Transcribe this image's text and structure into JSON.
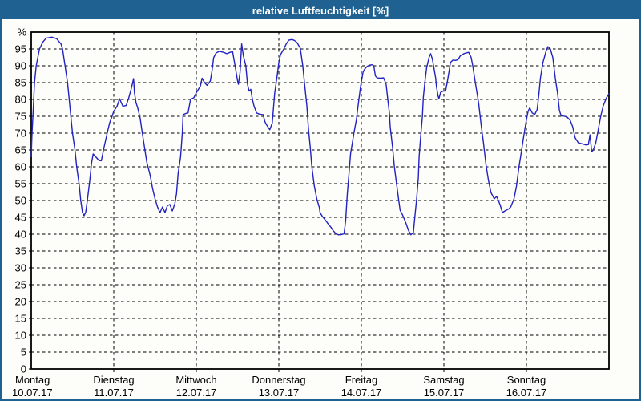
{
  "window": {
    "title": "relative Luftfeuchtigkeit [%]",
    "titlebar_color": "#1f6292",
    "border_color": "#1f6292",
    "background_color": "#fdfdfa"
  },
  "chart_data": {
    "type": "line",
    "title": "relative Luftfeuchtigkeit [%]",
    "ylabel": "%",
    "xlabel": "",
    "ylim": [
      0,
      100
    ],
    "yticks": [
      0,
      5,
      10,
      15,
      20,
      25,
      30,
      35,
      40,
      45,
      50,
      55,
      60,
      65,
      70,
      75,
      80,
      85,
      90,
      95
    ],
    "grid": "dashed",
    "legend_position": "none",
    "line_color": "#2222c0",
    "x_unit": "days_since_monday_00h",
    "xlim": [
      0,
      7
    ],
    "categories": [
      {
        "day": "Montag",
        "date": "10.07.17"
      },
      {
        "day": "Dienstag",
        "date": "11.07.17"
      },
      {
        "day": "Mittwoch",
        "date": "12.07.17"
      },
      {
        "day": "Donnerstag",
        "date": "13.07.17"
      },
      {
        "day": "Freitag",
        "date": "14.07.17"
      },
      {
        "day": "Samstag",
        "date": "15.07.17"
      },
      {
        "day": "Sonntag",
        "date": "16.07.17"
      }
    ],
    "series": [
      {
        "name": "relative Luftfeuchtigkeit [%]",
        "points": [
          [
            0,
            63
          ],
          [
            0.01,
            70
          ],
          [
            0.02,
            75
          ],
          [
            0.04,
            85
          ],
          [
            0.06,
            90
          ],
          [
            0.1,
            95
          ],
          [
            0.14,
            97
          ],
          [
            0.18,
            98.2
          ],
          [
            0.25,
            98.5
          ],
          [
            0.31,
            98
          ],
          [
            0.36,
            96.5
          ],
          [
            0.38,
            95
          ],
          [
            0.41,
            90
          ],
          [
            0.44,
            85
          ],
          [
            0.46,
            80
          ],
          [
            0.48,
            75
          ],
          [
            0.5,
            70
          ],
          [
            0.53,
            65
          ],
          [
            0.55,
            60
          ],
          [
            0.58,
            55
          ],
          [
            0.6,
            50
          ],
          [
            0.62,
            46.5
          ],
          [
            0.64,
            45.5
          ],
          [
            0.66,
            46.5
          ],
          [
            0.68,
            50
          ],
          [
            0.71,
            56
          ],
          [
            0.73,
            61
          ],
          [
            0.75,
            63.8
          ],
          [
            0.78,
            63
          ],
          [
            0.82,
            61.9
          ],
          [
            0.85,
            61.8
          ],
          [
            0.88,
            65.5
          ],
          [
            0.92,
            70
          ],
          [
            0.95,
            73
          ],
          [
            0.98,
            75
          ],
          [
            1,
            76.5
          ],
          [
            1.04,
            78
          ],
          [
            1.07,
            80.2
          ],
          [
            1.11,
            78
          ],
          [
            1.15,
            78.2
          ],
          [
            1.18,
            80.3
          ],
          [
            1.21,
            83
          ],
          [
            1.24,
            86.2
          ],
          [
            1.25,
            82
          ],
          [
            1.27,
            79
          ],
          [
            1.29,
            77.5
          ],
          [
            1.32,
            74.3
          ],
          [
            1.34,
            71
          ],
          [
            1.37,
            66.2
          ],
          [
            1.4,
            61.4
          ],
          [
            1.44,
            57.6
          ],
          [
            1.47,
            53.6
          ],
          [
            1.5,
            50.5
          ],
          [
            1.53,
            48.1
          ],
          [
            1.56,
            46.4
          ],
          [
            1.59,
            48.1
          ],
          [
            1.62,
            46.4
          ],
          [
            1.65,
            48.5
          ],
          [
            1.68,
            48.8
          ],
          [
            1.71,
            46.9
          ],
          [
            1.74,
            49
          ],
          [
            1.76,
            52
          ],
          [
            1.78,
            58
          ],
          [
            1.81,
            63
          ],
          [
            1.83,
            70
          ],
          [
            1.84,
            75.5
          ],
          [
            1.87,
            75.8
          ],
          [
            1.9,
            76
          ],
          [
            1.93,
            80
          ],
          [
            1.97,
            80.5
          ],
          [
            2,
            82
          ],
          [
            2.05,
            84
          ],
          [
            2.07,
            86.3
          ],
          [
            2.1,
            85
          ],
          [
            2.13,
            84.2
          ],
          [
            2.17,
            85.5
          ],
          [
            2.19,
            88.5
          ],
          [
            2.21,
            92.4
          ],
          [
            2.24,
            93.8
          ],
          [
            2.28,
            94.3
          ],
          [
            2.33,
            94
          ],
          [
            2.37,
            93.6
          ],
          [
            2.41,
            94
          ],
          [
            2.44,
            94.2
          ],
          [
            2.47,
            90
          ],
          [
            2.5,
            85.5
          ],
          [
            2.51,
            84.5
          ],
          [
            2.53,
            88
          ],
          [
            2.55,
            96.5
          ],
          [
            2.57,
            93
          ],
          [
            2.6,
            90
          ],
          [
            2.62,
            84.5
          ],
          [
            2.64,
            82.5
          ],
          [
            2.66,
            83
          ],
          [
            2.68,
            80
          ],
          [
            2.7,
            78
          ],
          [
            2.73,
            76
          ],
          [
            2.77,
            75.6
          ],
          [
            2.81,
            75.5
          ],
          [
            2.83,
            73.5
          ],
          [
            2.85,
            72.5
          ],
          [
            2.89,
            71
          ],
          [
            2.92,
            73
          ],
          [
            2.95,
            82
          ],
          [
            2.98,
            87
          ],
          [
            3,
            91
          ],
          [
            3.02,
            93.3
          ],
          [
            3.06,
            95
          ],
          [
            3.09,
            96.5
          ],
          [
            3.12,
            97.6
          ],
          [
            3.16,
            97.8
          ],
          [
            3.19,
            97.5
          ],
          [
            3.22,
            96.9
          ],
          [
            3.26,
            95.2
          ],
          [
            3.29,
            90
          ],
          [
            3.31,
            85.2
          ],
          [
            3.34,
            78.1
          ],
          [
            3.36,
            71
          ],
          [
            3.38,
            66.2
          ],
          [
            3.4,
            60
          ],
          [
            3.43,
            54.3
          ],
          [
            3.46,
            50.5
          ],
          [
            3.49,
            48
          ],
          [
            3.5,
            46.4
          ],
          [
            3.53,
            45.2
          ],
          [
            3.57,
            44
          ],
          [
            3.6,
            43
          ],
          [
            3.63,
            42.1
          ],
          [
            3.66,
            41
          ],
          [
            3.69,
            40.2
          ],
          [
            3.72,
            39.8
          ],
          [
            3.76,
            39.9
          ],
          [
            3.79,
            40.1
          ],
          [
            3.81,
            44
          ],
          [
            3.83,
            52
          ],
          [
            3.85,
            58
          ],
          [
            3.87,
            64
          ],
          [
            3.89,
            67
          ],
          [
            3.91,
            70
          ],
          [
            3.94,
            74
          ],
          [
            3.96,
            78.1
          ],
          [
            3.99,
            83.8
          ],
          [
            4.02,
            88.1
          ],
          [
            4.04,
            89
          ],
          [
            4.07,
            89.8
          ],
          [
            4.1,
            90.2
          ],
          [
            4.13,
            90.3
          ],
          [
            4.15,
            90
          ],
          [
            4.17,
            87
          ],
          [
            4.19,
            86.4
          ],
          [
            4.23,
            86.3
          ],
          [
            4.27,
            86.4
          ],
          [
            4.3,
            84.5
          ],
          [
            4.32,
            80
          ],
          [
            4.34,
            76
          ],
          [
            4.35,
            71.9
          ],
          [
            4.38,
            65.5
          ],
          [
            4.4,
            60
          ],
          [
            4.43,
            54.3
          ],
          [
            4.45,
            50.5
          ],
          [
            4.47,
            47.1
          ],
          [
            4.5,
            45.7
          ],
          [
            4.54,
            43.3
          ],
          [
            4.57,
            41.2
          ],
          [
            4.6,
            39.8
          ],
          [
            4.63,
            40.5
          ],
          [
            4.65,
            45.7
          ],
          [
            4.67,
            50.5
          ],
          [
            4.69,
            56.7
          ],
          [
            4.7,
            63
          ],
          [
            4.72,
            69.5
          ],
          [
            4.74,
            75
          ],
          [
            4.75,
            80.5
          ],
          [
            4.77,
            85.2
          ],
          [
            4.79,
            89.3
          ],
          [
            4.82,
            92.5
          ],
          [
            4.84,
            93.6
          ],
          [
            4.86,
            92
          ],
          [
            4.88,
            89.3
          ],
          [
            4.9,
            86.4
          ],
          [
            4.91,
            83.8
          ],
          [
            4.93,
            81
          ],
          [
            4.94,
            80.2
          ],
          [
            4.96,
            82.1
          ],
          [
            4.99,
            82.5
          ],
          [
            5.02,
            82.5
          ],
          [
            5.04,
            85
          ],
          [
            5.06,
            88
          ],
          [
            5.08,
            91
          ],
          [
            5.11,
            91.7
          ],
          [
            5.14,
            91.6
          ],
          [
            5.17,
            91.8
          ],
          [
            5.2,
            93
          ],
          [
            5.25,
            93.7
          ],
          [
            5.3,
            94
          ],
          [
            5.33,
            92.5
          ],
          [
            5.35,
            90
          ],
          [
            5.38,
            85.2
          ],
          [
            5.42,
            79
          ],
          [
            5.45,
            72.6
          ],
          [
            5.48,
            67.1
          ],
          [
            5.51,
            60.7
          ],
          [
            5.54,
            56
          ],
          [
            5.57,
            52.4
          ],
          [
            5.61,
            50.5
          ],
          [
            5.64,
            51.2
          ],
          [
            5.66,
            50
          ],
          [
            5.68,
            48.8
          ],
          [
            5.71,
            46.4
          ],
          [
            5.74,
            46.9
          ],
          [
            5.79,
            47.6
          ],
          [
            5.81,
            48.1
          ],
          [
            5.85,
            50.5
          ],
          [
            5.88,
            54.3
          ],
          [
            5.91,
            60
          ],
          [
            5.93,
            63.1
          ],
          [
            5.96,
            68
          ],
          [
            5.98,
            71
          ],
          [
            6,
            74
          ],
          [
            6.02,
            76.5
          ],
          [
            6.04,
            77.5
          ],
          [
            6.07,
            76
          ],
          [
            6.1,
            75.5
          ],
          [
            6.13,
            77
          ],
          [
            6.15,
            81.4
          ],
          [
            6.17,
            86.4
          ],
          [
            6.2,
            91
          ],
          [
            6.24,
            94.5
          ],
          [
            6.26,
            95.7
          ],
          [
            6.29,
            95
          ],
          [
            6.32,
            92.4
          ],
          [
            6.35,
            86.4
          ],
          [
            6.38,
            81.4
          ],
          [
            6.4,
            76.7
          ],
          [
            6.42,
            75.2
          ],
          [
            6.46,
            75
          ],
          [
            6.49,
            74.8
          ],
          [
            6.53,
            73.8
          ],
          [
            6.56,
            71.9
          ],
          [
            6.59,
            68.6
          ],
          [
            6.63,
            67.1
          ],
          [
            6.68,
            66.8
          ],
          [
            6.72,
            66.5
          ],
          [
            6.75,
            66.6
          ],
          [
            6.77,
            69.5
          ],
          [
            6.79,
            64.5
          ],
          [
            6.81,
            65
          ],
          [
            6.84,
            67.1
          ],
          [
            6.87,
            71
          ],
          [
            6.9,
            75
          ],
          [
            6.93,
            78.1
          ],
          [
            6.97,
            80.5
          ],
          [
            7,
            81.7
          ]
        ]
      }
    ]
  }
}
